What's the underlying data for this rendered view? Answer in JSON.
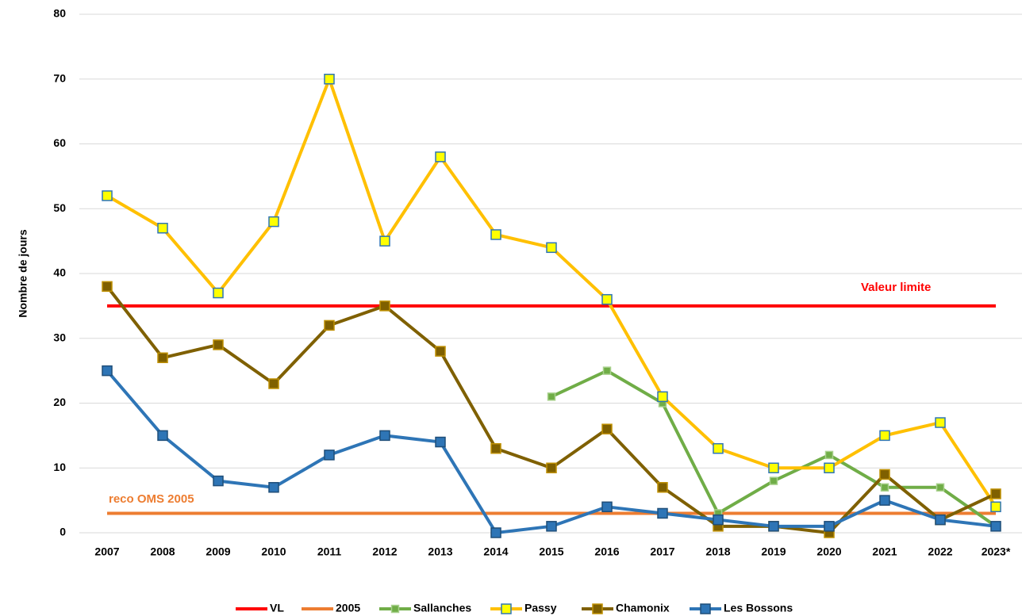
{
  "chart_data": {
    "type": "line",
    "y_label": "Nombre de jours",
    "categories": [
      "2007",
      "2008",
      "2009",
      "2010",
      "2011",
      "2012",
      "2013",
      "2014",
      "2015",
      "2016",
      "2017",
      "2018",
      "2019",
      "2020",
      "2021",
      "2022",
      "2023*"
    ],
    "ylim": [
      0,
      80
    ],
    "yticks": [
      0,
      10,
      20,
      30,
      40,
      50,
      60,
      70,
      80
    ],
    "grid": true,
    "legend": "bottom",
    "series": [
      {
        "name": "VL",
        "color": "#ff0000",
        "values": [
          35,
          35,
          35,
          35,
          35,
          35,
          35,
          35,
          35,
          35,
          35,
          35,
          35,
          35,
          35,
          35,
          35
        ]
      },
      {
        "name": "2005",
        "color": "#ed7d31",
        "values": [
          3,
          3,
          3,
          3,
          3,
          3,
          3,
          3,
          3,
          3,
          3,
          3,
          3,
          3,
          3,
          3,
          3
        ]
      },
      {
        "name": "Sallanches",
        "color": "#70ad47",
        "marker_color": "#70ad47",
        "marker_edge": "#a9d18e",
        "values": [
          null,
          null,
          null,
          null,
          null,
          null,
          null,
          null,
          21,
          25,
          20,
          3,
          8,
          12,
          7,
          7,
          1
        ]
      },
      {
        "name": "Passy",
        "color": "#ffc000",
        "marker_color": "#ffff00",
        "marker_edge": "#2e75b6",
        "values": [
          52,
          47,
          37,
          48,
          70,
          45,
          58,
          46,
          44,
          36,
          21,
          13,
          10,
          10,
          15,
          17,
          4
        ]
      },
      {
        "name": "Chamonix",
        "color": "#7f6000",
        "marker_color": "#7f6000",
        "marker_edge": "#bf9000",
        "values": [
          38,
          27,
          29,
          23,
          32,
          35,
          28,
          13,
          10,
          16,
          7,
          1,
          1,
          0,
          9,
          2,
          6
        ]
      },
      {
        "name": "Les Bossons",
        "color": "#2e75b6",
        "marker_color": "#2e75b6",
        "marker_edge": "#1f4e79",
        "values": [
          25,
          15,
          8,
          7,
          12,
          15,
          14,
          0,
          1,
          4,
          3,
          2,
          1,
          1,
          5,
          2,
          1
        ]
      }
    ],
    "annotations": [
      {
        "text": "Valeur limite",
        "color": "#ff0000"
      },
      {
        "text": "reco OMS 2005",
        "color": "#ed7d31"
      }
    ]
  }
}
